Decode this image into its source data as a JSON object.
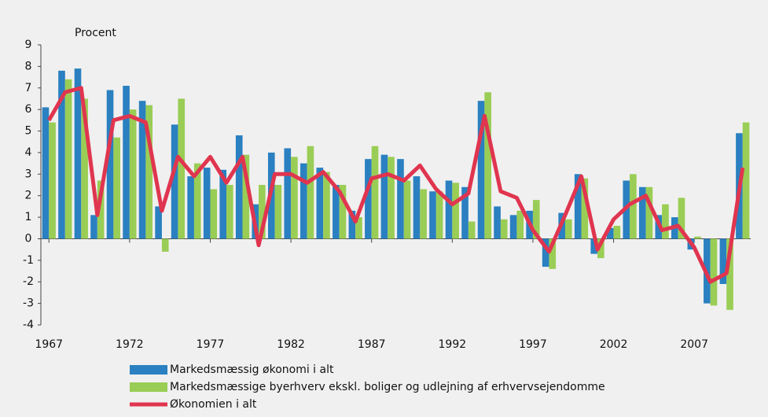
{
  "chart_data": {
    "type": "bar-line",
    "ylabel": "Procent",
    "x": [
      1967,
      1968,
      1969,
      1970,
      1971,
      1972,
      1973,
      1974,
      1975,
      1976,
      1977,
      1978,
      1979,
      1980,
      1981,
      1982,
      1983,
      1984,
      1985,
      1986,
      1987,
      1988,
      1989,
      1990,
      1991,
      1992,
      1993,
      1994,
      1995,
      1996,
      1997,
      1998,
      1999,
      2000,
      2001,
      2002,
      2003,
      2004,
      2005,
      2006,
      2007,
      2008,
      2009,
      2010
    ],
    "series": [
      {
        "name": "Markedsmæssig økonomi i alt",
        "kind": "bar",
        "color": "#2a80c0",
        "values": [
          6.1,
          7.8,
          7.9,
          1.1,
          6.9,
          7.1,
          6.4,
          1.5,
          5.3,
          2.9,
          3.3,
          3.2,
          4.8,
          1.6,
          4.0,
          4.2,
          3.5,
          3.3,
          2.5,
          1.3,
          3.7,
          3.9,
          3.7,
          2.9,
          2.2,
          2.7,
          2.4,
          6.4,
          1.5,
          1.1,
          1.3,
          -1.3,
          1.2,
          3.0,
          -0.7,
          0.5,
          2.7,
          2.4,
          1.1,
          1.0,
          -0.5,
          -3.0,
          -2.1,
          4.9
        ]
      },
      {
        "name": "Markedsmæssige byerhverv ekskl. boliger og udlejning af erhvervsejendomme",
        "kind": "bar",
        "color": "#9acd55",
        "values": [
          5.4,
          7.4,
          6.5,
          2.7,
          4.7,
          6.0,
          6.2,
          -0.6,
          6.5,
          3.5,
          2.3,
          2.5,
          3.9,
          2.5,
          2.5,
          3.8,
          4.3,
          3.1,
          2.5,
          1.0,
          4.3,
          3.8,
          2.7,
          2.3,
          2.2,
          2.6,
          0.8,
          6.8,
          0.9,
          1.3,
          1.8,
          -1.4,
          0.9,
          2.8,
          -0.9,
          0.6,
          3.0,
          2.4,
          1.6,
          1.9,
          0.1,
          -3.1,
          -3.3,
          5.4
        ]
      },
      {
        "name": "Økonomien i alt",
        "kind": "line",
        "color": "#e0354f",
        "values": [
          5.5,
          6.8,
          7.0,
          1.1,
          5.5,
          5.7,
          5.4,
          1.3,
          3.8,
          2.9,
          3.8,
          2.6,
          3.8,
          -0.3,
          3.0,
          3.0,
          2.6,
          3.1,
          2.2,
          0.8,
          2.8,
          3.0,
          2.7,
          3.4,
          2.3,
          1.6,
          2.1,
          5.7,
          2.2,
          1.9,
          0.4,
          -0.6,
          1.1,
          2.9,
          -0.5,
          0.9,
          1.6,
          2.0,
          0.4,
          0.6,
          -0.4,
          -2.0,
          -1.6,
          3.3
        ]
      }
    ],
    "xlim": [
      1966.5,
      2010.5
    ],
    "xticks": [
      1967,
      1972,
      1977,
      1982,
      1987,
      1992,
      1997,
      2002,
      2007
    ],
    "ylim": [
      -4,
      9
    ],
    "yticks": [
      -4,
      -3,
      -2,
      -1,
      0,
      1,
      2,
      3,
      4,
      5,
      6,
      7,
      8,
      9
    ]
  }
}
